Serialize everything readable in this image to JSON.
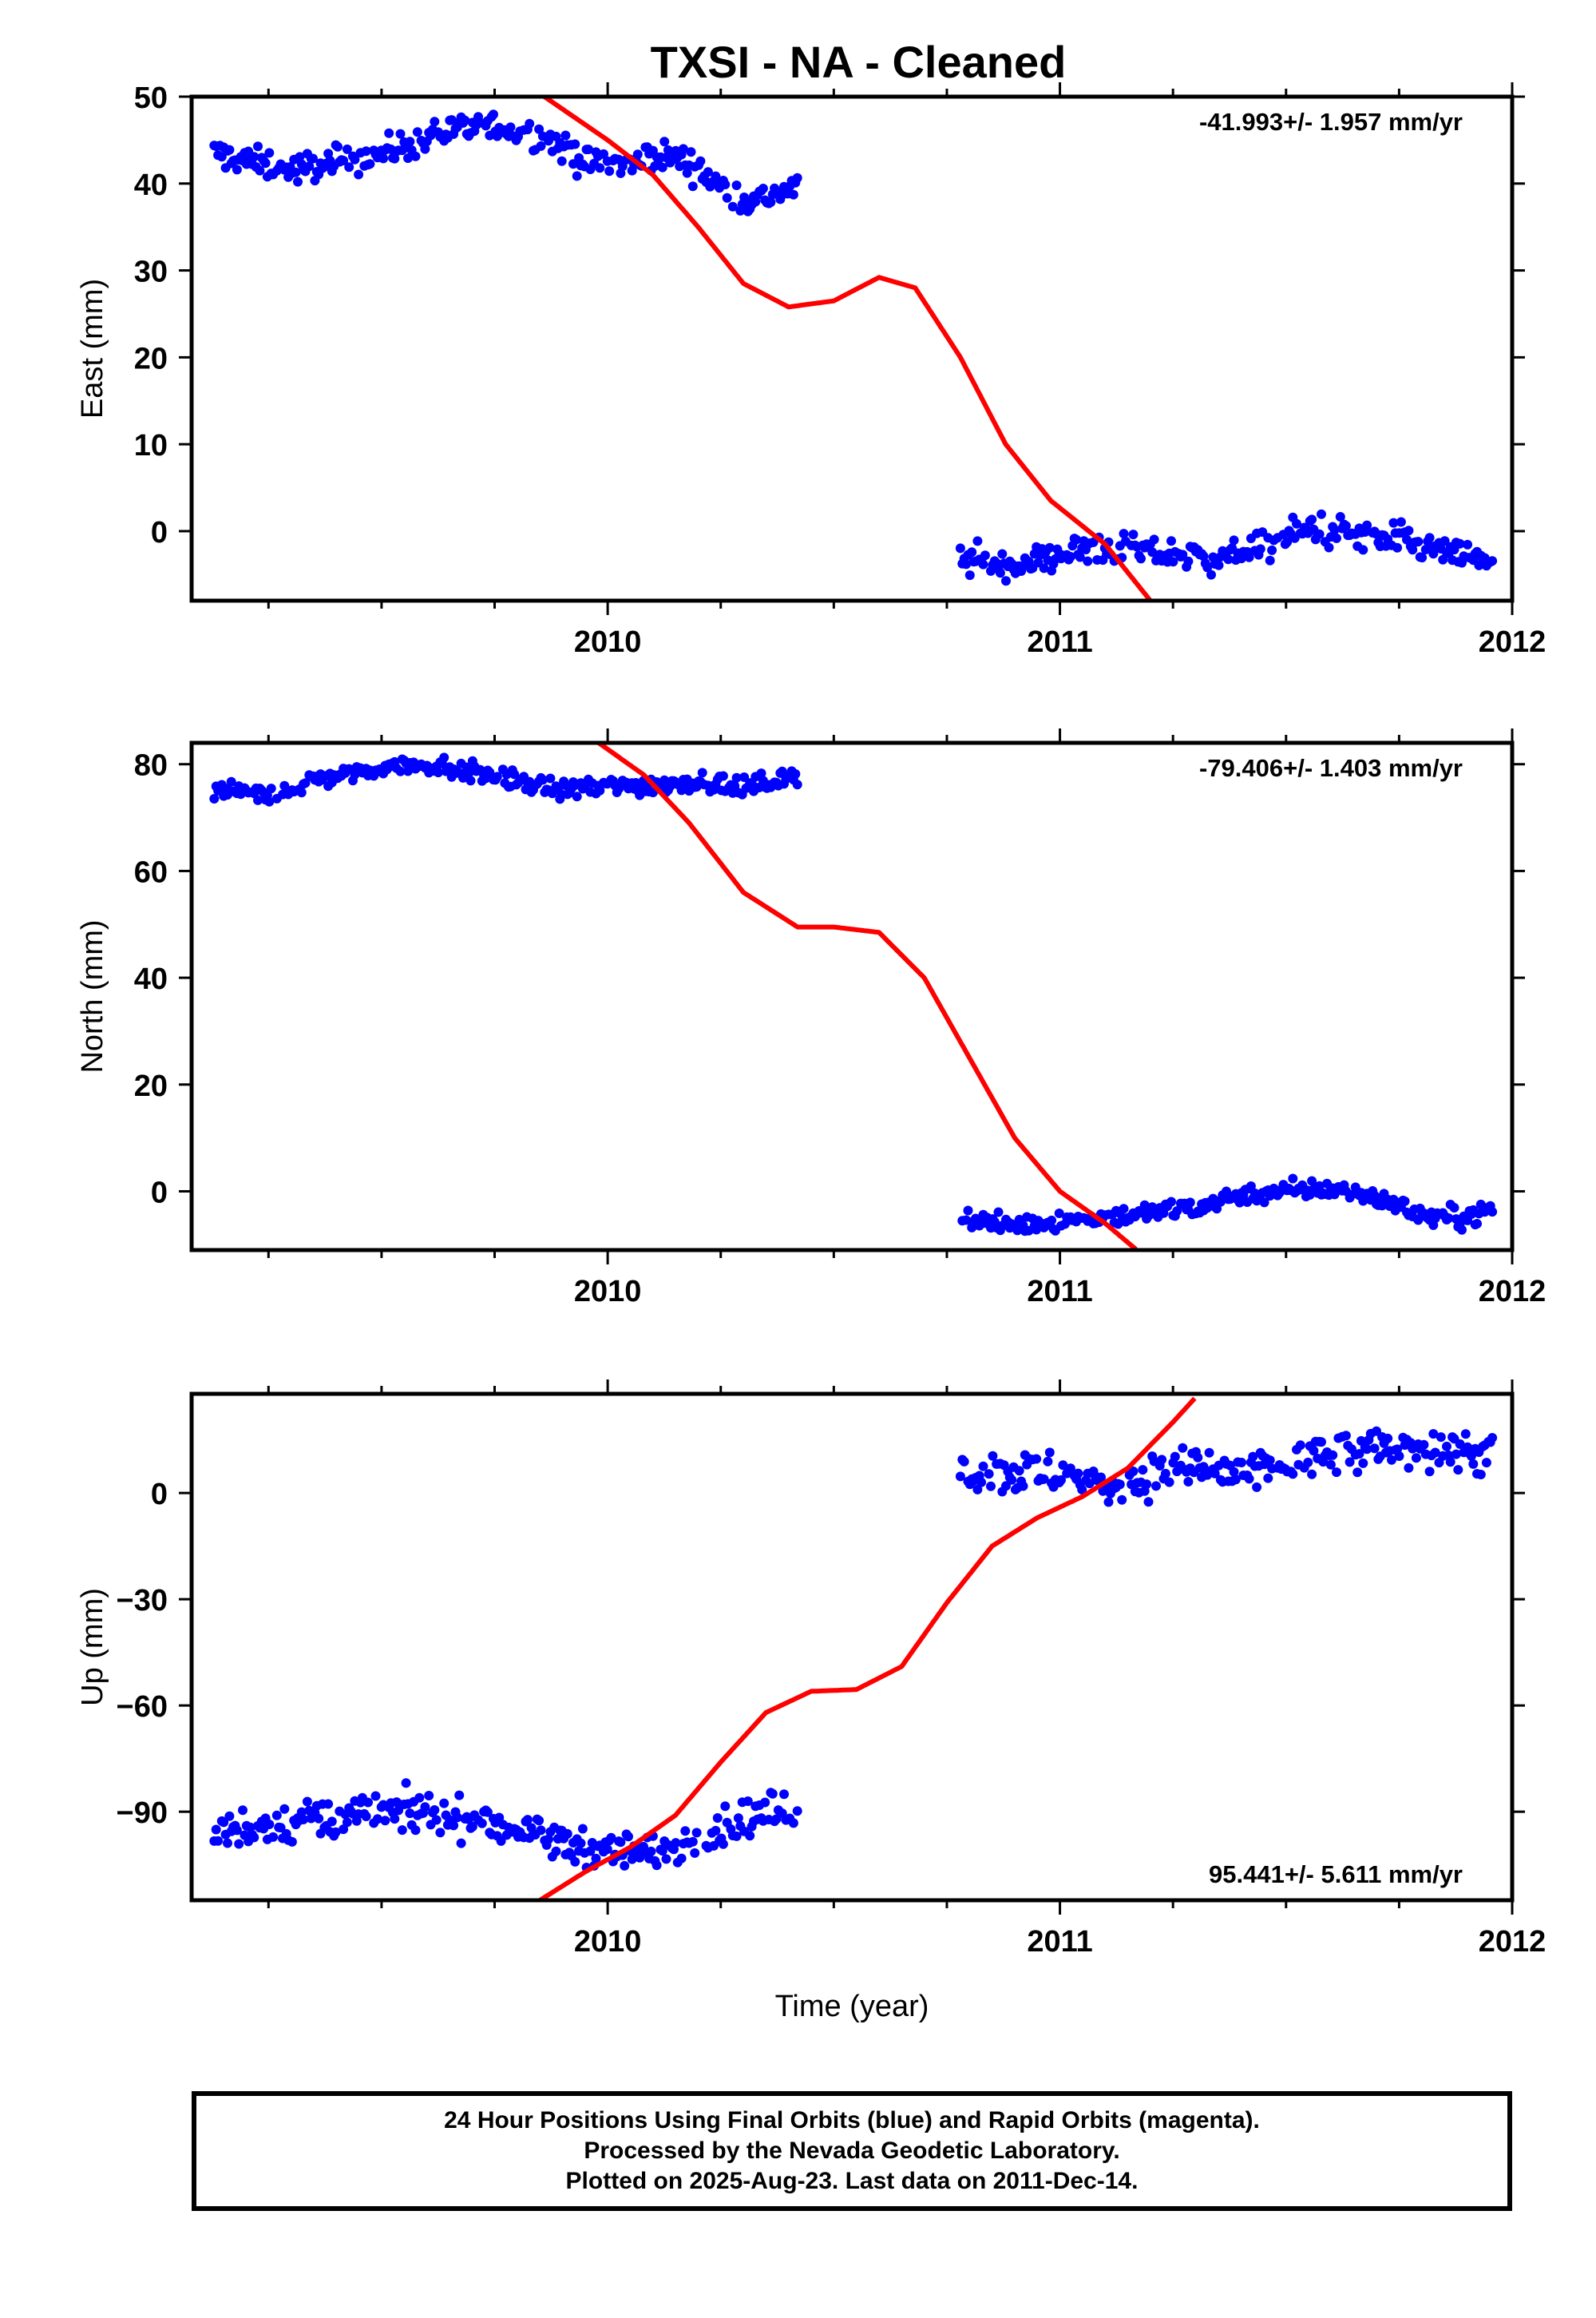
{
  "title": "TXSI  - NA - Cleaned",
  "colors": {
    "data": "#0000ff",
    "model": "#ff0000",
    "axis": "#000000"
  },
  "chart_data": [
    {
      "type": "scatter",
      "id": "east",
      "ylabel": "East (mm)",
      "xlabel": "",
      "xlim": [
        2009.08,
        2012.0
      ],
      "ylim": [
        -8,
        50
      ],
      "yticks": [
        0,
        10,
        20,
        30,
        40,
        50
      ],
      "xticks": [
        2010,
        2011,
        2012
      ],
      "rate_label": "-41.993+/- 1.957 mm/yr",
      "rate_position": "top-right",
      "segments": [
        {
          "x0": 2009.13,
          "x1": 2010.42,
          "points": [
            [
              2009.13,
              43.5
            ],
            [
              2009.3,
              41.5
            ],
            [
              2009.5,
              43.5
            ],
            [
              2009.65,
              46
            ],
            [
              2009.75,
              46.5
            ],
            [
              2009.85,
              45.5
            ],
            [
              2009.95,
              42.5
            ],
            [
              2010.05,
              42
            ],
            [
              2010.1,
              43.5
            ],
            [
              2010.18,
              42.5
            ],
            [
              2010.25,
              39.5
            ],
            [
              2010.32,
              38
            ],
            [
              2010.42,
              39.5
            ]
          ],
          "noise": 1.2
        },
        {
          "x0": 2010.78,
          "x1": 2011.96,
          "points": [
            [
              2010.78,
              -3
            ],
            [
              2010.85,
              -4
            ],
            [
              2010.95,
              -3.5
            ],
            [
              2011.0,
              -2.5
            ],
            [
              2011.1,
              -2
            ],
            [
              2011.2,
              -2.5
            ],
            [
              2011.35,
              -3
            ],
            [
              2011.45,
              -2
            ],
            [
              2011.55,
              0.5
            ],
            [
              2011.65,
              -0.5
            ],
            [
              2011.75,
              -1
            ],
            [
              2011.85,
              -2.5
            ],
            [
              2011.96,
              -3.5
            ]
          ],
          "noise": 1.3
        }
      ],
      "model_curve": [
        [
          2009.86,
          50
        ],
        [
          2010.0,
          45
        ],
        [
          2010.1,
          41
        ],
        [
          2010.2,
          35
        ],
        [
          2010.3,
          28.5
        ],
        [
          2010.4,
          25.8
        ],
        [
          2010.5,
          26.5
        ],
        [
          2010.6,
          29.2
        ],
        [
          2010.68,
          28
        ],
        [
          2010.78,
          20
        ],
        [
          2010.88,
          10
        ],
        [
          2010.98,
          3.5
        ],
        [
          2011.1,
          -1.5
        ],
        [
          2011.2,
          -8
        ]
      ]
    },
    {
      "type": "scatter",
      "id": "north",
      "ylabel": "North (mm)",
      "xlabel": "",
      "xlim": [
        2009.08,
        2012.0
      ],
      "ylim": [
        -11,
        84
      ],
      "yticks": [
        0,
        20,
        40,
        60,
        80
      ],
      "xticks": [
        2010,
        2011,
        2012
      ],
      "rate_label": "-79.406+/- 1.403 mm/yr",
      "rate_position": "top-right",
      "segments": [
        {
          "x0": 2009.13,
          "x1": 2010.42,
          "points": [
            [
              2009.13,
              75
            ],
            [
              2009.25,
              74
            ],
            [
              2009.35,
              77
            ],
            [
              2009.5,
              79.5
            ],
            [
              2009.6,
              80
            ],
            [
              2009.7,
              78.5
            ],
            [
              2009.8,
              77
            ],
            [
              2009.9,
              75
            ],
            [
              2010.0,
              76
            ],
            [
              2010.1,
              76
            ],
            [
              2010.2,
              77
            ],
            [
              2010.3,
              75.5
            ],
            [
              2010.42,
              78
            ]
          ],
          "noise": 1.3
        },
        {
          "x0": 2010.78,
          "x1": 2011.96,
          "points": [
            [
              2010.78,
              -5
            ],
            [
              2010.88,
              -6.5
            ],
            [
              2011.0,
              -5.5
            ],
            [
              2011.15,
              -4.5
            ],
            [
              2011.3,
              -3
            ],
            [
              2011.4,
              -0.5
            ],
            [
              2011.5,
              0
            ],
            [
              2011.6,
              0.5
            ],
            [
              2011.7,
              -1
            ],
            [
              2011.8,
              -4.5
            ],
            [
              2011.9,
              -5
            ],
            [
              2011.96,
              -3
            ]
          ],
          "noise": 1.3
        }
      ],
      "model_curve": [
        [
          2009.98,
          84
        ],
        [
          2010.08,
          78
        ],
        [
          2010.18,
          69
        ],
        [
          2010.3,
          56
        ],
        [
          2010.42,
          49.5
        ],
        [
          2010.5,
          49.5
        ],
        [
          2010.6,
          48.5
        ],
        [
          2010.7,
          40
        ],
        [
          2010.8,
          25
        ],
        [
          2010.9,
          10
        ],
        [
          2011.0,
          0
        ],
        [
          2011.1,
          -6
        ],
        [
          2011.17,
          -11
        ]
      ]
    },
    {
      "type": "scatter",
      "id": "up",
      "ylabel": "Up (mm)",
      "xlabel": "Time (year)",
      "xlim": [
        2009.08,
        2012.0
      ],
      "ylim": [
        -115,
        28
      ],
      "yticks": [
        -90,
        -60,
        -30,
        0
      ],
      "xticks": [
        2010,
        2011,
        2012
      ],
      "rate_label": "95.441+/- 5.611 mm/yr",
      "rate_position": "bottom-right",
      "segments": [
        {
          "x0": 2009.13,
          "x1": 2010.42,
          "points": [
            [
              2009.13,
              -95
            ],
            [
              2009.3,
              -93
            ],
            [
              2009.45,
              -91
            ],
            [
              2009.55,
              -90
            ],
            [
              2009.7,
              -92
            ],
            [
              2009.8,
              -95
            ],
            [
              2009.9,
              -99
            ],
            [
              2010.0,
              -100
            ],
            [
              2010.1,
              -102
            ],
            [
              2010.2,
              -97
            ],
            [
              2010.3,
              -92
            ],
            [
              2010.42,
              -89
            ]
          ],
          "noise": 4
        },
        {
          "x0": 2010.78,
          "x1": 2011.96,
          "points": [
            [
              2010.78,
              6
            ],
            [
              2010.9,
              6
            ],
            [
              2011.0,
              5
            ],
            [
              2011.1,
              2
            ],
            [
              2011.2,
              5
            ],
            [
              2011.3,
              7
            ],
            [
              2011.4,
              5
            ],
            [
              2011.5,
              8
            ],
            [
              2011.6,
              10
            ],
            [
              2011.7,
              12
            ],
            [
              2011.8,
              13
            ],
            [
              2011.96,
              11
            ]
          ],
          "noise": 4.5
        }
      ],
      "model_curve": [
        [
          2009.85,
          -115
        ],
        [
          2009.95,
          -107
        ],
        [
          2010.05,
          -100
        ],
        [
          2010.15,
          -91
        ],
        [
          2010.25,
          -76
        ],
        [
          2010.35,
          -62
        ],
        [
          2010.45,
          -56
        ],
        [
          2010.55,
          -55.5
        ],
        [
          2010.65,
          -49
        ],
        [
          2010.75,
          -31
        ],
        [
          2010.85,
          -15
        ],
        [
          2010.95,
          -7
        ],
        [
          2011.05,
          -1
        ],
        [
          2011.15,
          7
        ],
        [
          2011.25,
          20
        ],
        [
          2011.3,
          27
        ]
      ]
    }
  ],
  "footer": {
    "line1": "24 Hour Positions Using Final Orbits (blue) and Rapid Orbits (magenta).",
    "line2": "Processed by the Nevada Geodetic Laboratory.",
    "line3": "Plotted on 2025-Aug-23. Last data on 2011-Dec-14."
  }
}
